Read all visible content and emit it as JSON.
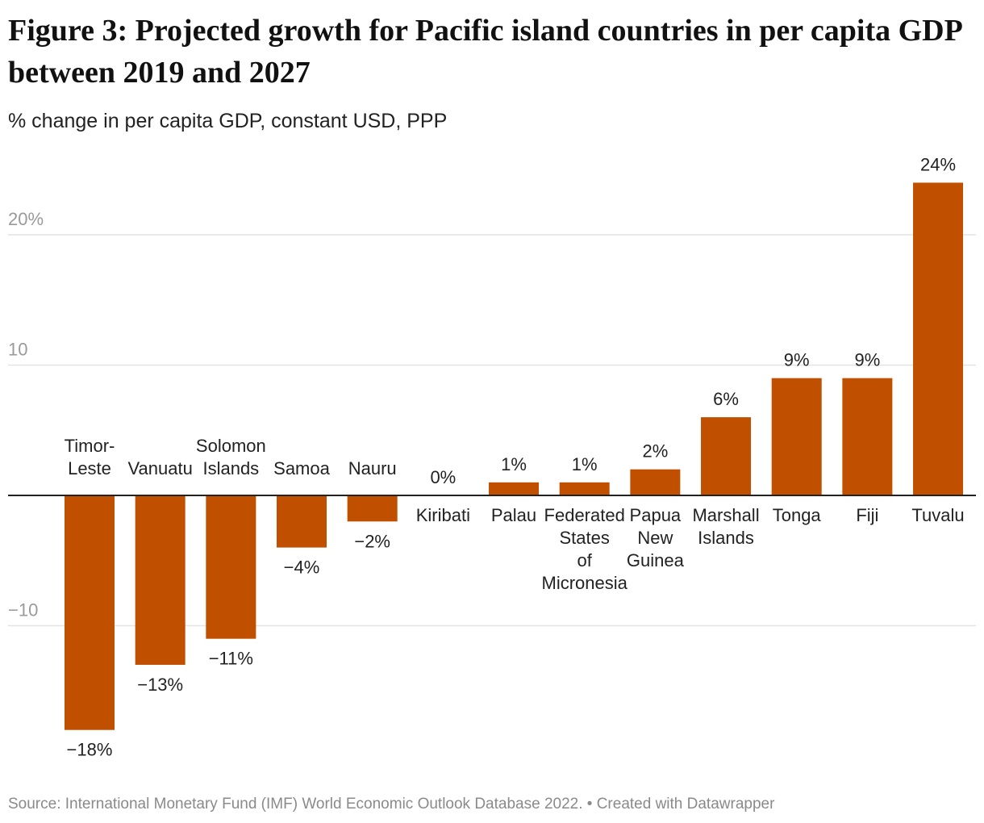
{
  "page": {
    "title": "Figure 3: Projected growth for Pacific island countries in per capita GDP between 2019 and 2027",
    "subtitle": "% change in per capita GDP, constant USD, PPP",
    "source": "Source: International Monetary Fund (IMF) World Economic Outlook Database 2022. • Created with Datawrapper"
  },
  "colors": {
    "bar": "#c04f00",
    "grid": "#e3e3e3",
    "baseline": "#222222",
    "tick_text": "#9a9a9a",
    "label_text": "#222222"
  },
  "chart_data": {
    "type": "bar",
    "title": "Figure 3: Projected growth for Pacific island countries in per capita GDP between 2019 and 2027",
    "subtitle": "% change in per capita GDP, constant USD, PPP",
    "categories": [
      "Timor-Leste",
      "Vanuatu",
      "Solomon Islands",
      "Samoa",
      "Nauru",
      "Kiribati",
      "Palau",
      "Federated States of Micronesia",
      "Papua New Guinea",
      "Marshall Islands",
      "Tonga",
      "Fiji",
      "Tuvalu"
    ],
    "values": [
      -18,
      -13,
      -11,
      -4,
      -2,
      0,
      1,
      1,
      2,
      6,
      9,
      9,
      24
    ],
    "value_labels": [
      "−18%",
      "−13%",
      "−11%",
      "−4%",
      "−2%",
      "0%",
      "1%",
      "1%",
      "2%",
      "6%",
      "9%",
      "9%",
      "24%"
    ],
    "yticks": [
      20,
      10,
      -10
    ],
    "ytick_labels": [
      "20%",
      "10",
      "−10"
    ],
    "ylim": [
      -20,
      24
    ],
    "grid": true,
    "legend": "none"
  }
}
